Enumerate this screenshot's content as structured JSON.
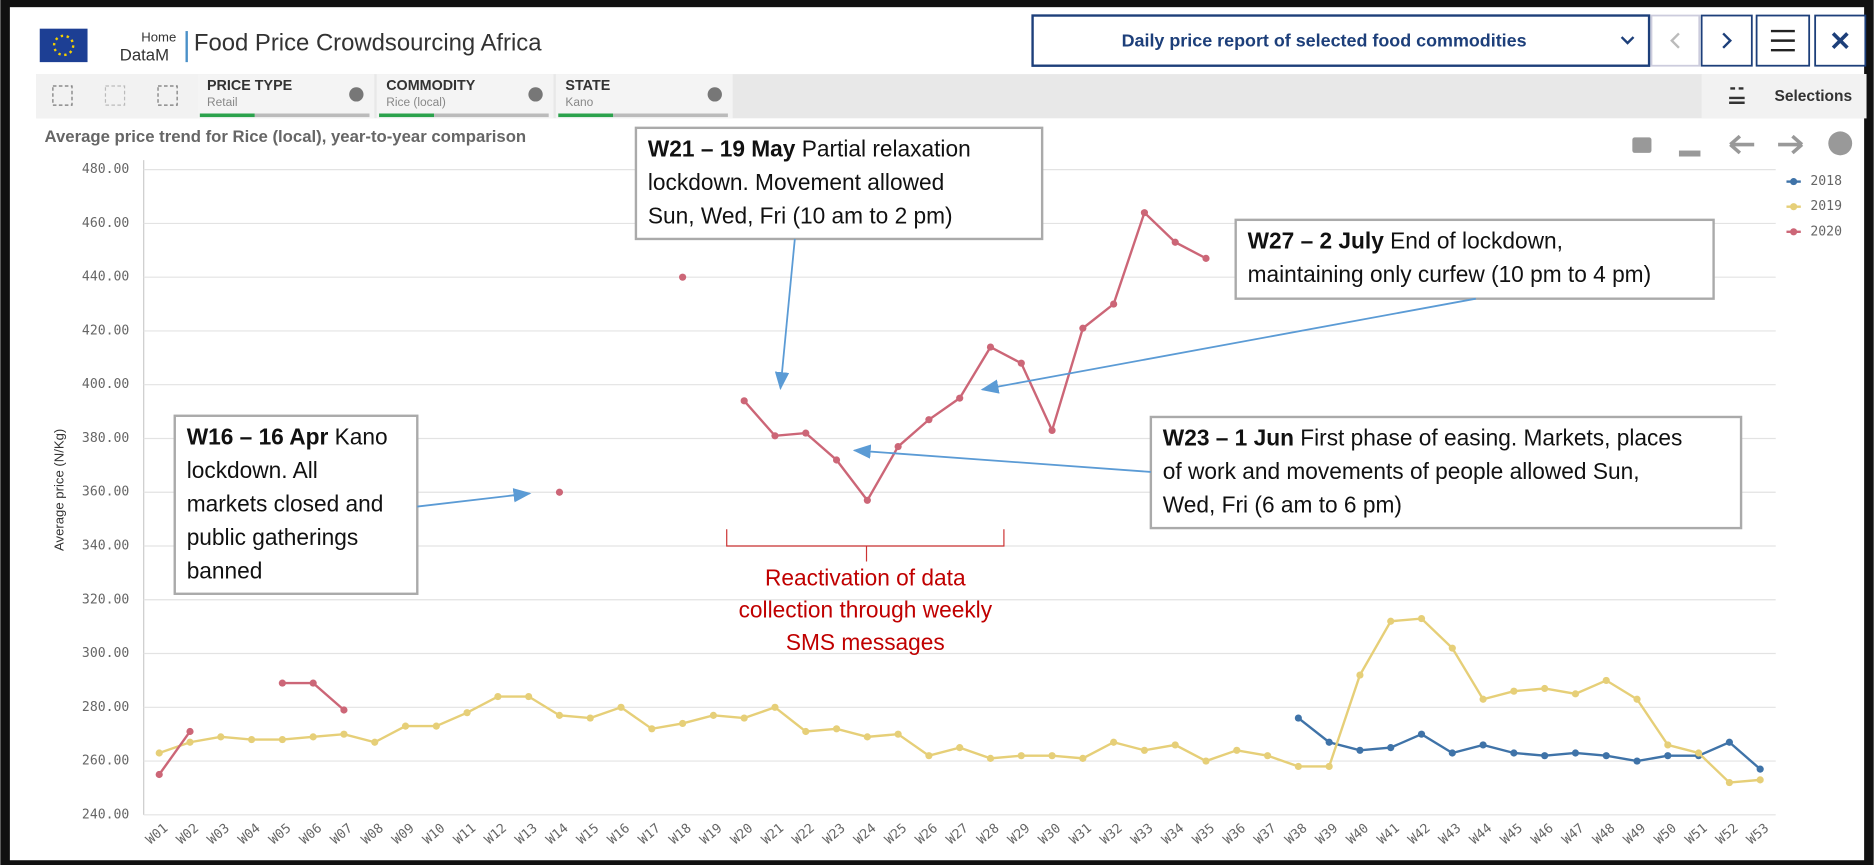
{
  "header": {
    "home": "Home",
    "app": "DataM",
    "title": "Food Price Crowdsourcing Africa",
    "sheet": "Daily price report of selected food commodities"
  },
  "filters": [
    {
      "label": "PRICE TYPE",
      "value": "Retail"
    },
    {
      "label": "COMMODITY",
      "value": "Rice (local)"
    },
    {
      "label": "STATE",
      "value": "Kano"
    }
  ],
  "selections": "Selections",
  "chart_data": {
    "type": "line",
    "title": "Average price trend for Rice (local), year-to-year comparison",
    "y_label": "Average price (N/Kg)",
    "categories": [
      "W01",
      "W02",
      "W03",
      "W04",
      "W05",
      "W06",
      "W07",
      "W08",
      "W09",
      "W10",
      "W11",
      "W12",
      "W13",
      "W14",
      "W15",
      "W16",
      "W17",
      "W18",
      "W19",
      "W20",
      "W21",
      "W22",
      "W23",
      "W24",
      "W25",
      "W26",
      "W27",
      "W28",
      "W29",
      "W30",
      "W31",
      "W32",
      "W33",
      "W34",
      "W35",
      "W36",
      "W37",
      "W38",
      "W39",
      "W40",
      "W41",
      "W42",
      "W43",
      "W44",
      "W45",
      "W46",
      "W47",
      "W48",
      "W49",
      "W50",
      "W51",
      "W52",
      "W53"
    ],
    "series": [
      {
        "name": "2018",
        "color": "#3f73a8",
        "values": [
          null,
          null,
          null,
          null,
          null,
          null,
          null,
          null,
          null,
          null,
          null,
          null,
          null,
          null,
          null,
          null,
          null,
          null,
          null,
          null,
          null,
          null,
          null,
          null,
          null,
          null,
          null,
          null,
          null,
          null,
          null,
          null,
          null,
          null,
          null,
          null,
          null,
          276,
          267,
          264,
          265,
          270,
          263,
          266,
          263,
          262,
          263,
          262,
          260,
          262,
          262,
          267,
          257
        ]
      },
      {
        "name": "2019",
        "color": "#e6cf78",
        "values": [
          263,
          267,
          269,
          268,
          268,
          269,
          270,
          267,
          273,
          273,
          278,
          284,
          284,
          277,
          276,
          280,
          272,
          274,
          277,
          276,
          280,
          271,
          272,
          269,
          270,
          262,
          265,
          261,
          262,
          262,
          261,
          267,
          264,
          266,
          260,
          264,
          262,
          258,
          258,
          292,
          312,
          313,
          302,
          283,
          286,
          287,
          285,
          290,
          283,
          266,
          263,
          252,
          253
        ]
      },
      {
        "name": "2020",
        "color": "#cc6677",
        "values": [
          255,
          271,
          null,
          null,
          289,
          289,
          279,
          null,
          null,
          null,
          null,
          null,
          null,
          360,
          null,
          null,
          null,
          440,
          null,
          394,
          381,
          382,
          372,
          357,
          377,
          387,
          395,
          414,
          408,
          383,
          421,
          430,
          464,
          453,
          447,
          null,
          null,
          null,
          null,
          null,
          null,
          null,
          null,
          null,
          null,
          null,
          null,
          null,
          null,
          null,
          null,
          null,
          null
        ]
      }
    ],
    "ylim": [
      240,
      480
    ],
    "yticks": [
      {
        "value": 240,
        "label": "240.00"
      },
      {
        "value": 260,
        "label": "260.00"
      },
      {
        "value": 280,
        "label": "280.00"
      },
      {
        "value": 300,
        "label": "300.00"
      },
      {
        "value": 320,
        "label": "320.00"
      },
      {
        "value": 340,
        "label": "340.00"
      },
      {
        "value": 360,
        "label": "360.00"
      },
      {
        "value": 380,
        "label": "380.00"
      },
      {
        "value": 400,
        "label": "400.00"
      },
      {
        "value": 420,
        "label": "420.00"
      },
      {
        "value": 440,
        "label": "440.00"
      },
      {
        "value": 460,
        "label": "460.00"
      },
      {
        "value": 480,
        "label": "480.00"
      }
    ],
    "grid": true,
    "legend": "top-right",
    "annotations": [
      {
        "bold": "W21 – 19 May",
        "lines": [
          "Partial relaxation",
          "lockdown. Movement allowed",
          "Sun, Wed, Fri (10 am to 2 pm)"
        ]
      },
      {
        "bold": "W27 – 2 July",
        "lines": [
          "End of lockdown,",
          "maintaining only curfew (10 pm to 4 pm)"
        ]
      },
      {
        "bold": "W16 – 16 Apr",
        "lines": [
          "Kano",
          "lockdown. All",
          "markets closed and",
          "public gatherings",
          "banned"
        ]
      },
      {
        "bold": "W23 – 1 Jun",
        "lines": [
          "First phase of easing. Markets, places",
          "of work and movements of people allowed Sun,",
          "Wed, Fri (6 am to 6 pm)"
        ]
      }
    ],
    "note": [
      "Reactivation of data",
      "collection through weekly",
      "SMS messages"
    ]
  }
}
